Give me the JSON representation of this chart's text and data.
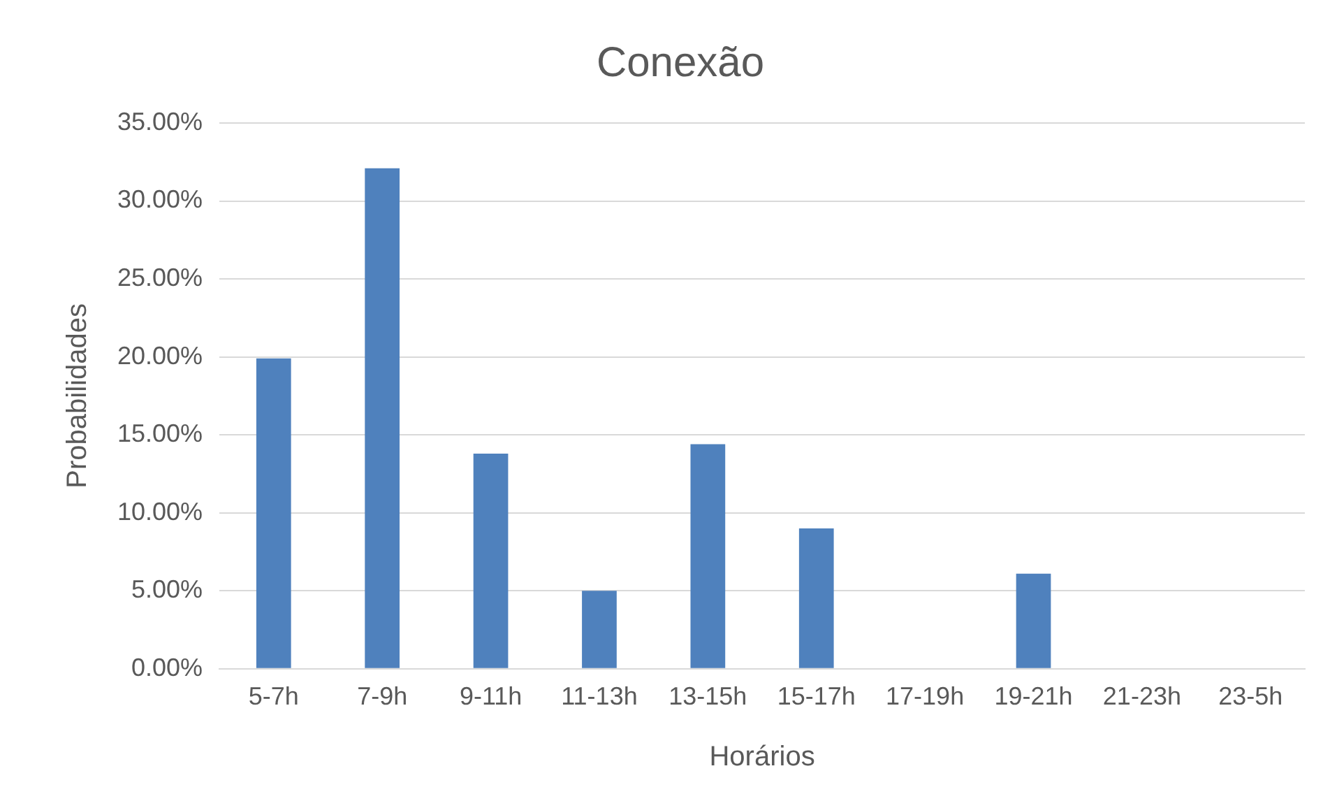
{
  "chart_data": {
    "type": "bar",
    "title": "Conexão",
    "xlabel": "Horários",
    "ylabel": "Probabilidades",
    "categories": [
      "5-7h",
      "7-9h",
      "9-11h",
      "11-13h",
      "13-15h",
      "15-17h",
      "17-19h",
      "19-21h",
      "21-23h",
      "23-5h"
    ],
    "values": [
      19.9,
      32.1,
      13.8,
      5.0,
      14.4,
      9.0,
      0,
      6.1,
      0,
      0
    ],
    "color": "#4f81bd",
    "ylim": [
      0,
      35
    ],
    "yticks": [
      {
        "value": 0,
        "label": "0.00%"
      },
      {
        "value": 5,
        "label": "5.00%"
      },
      {
        "value": 10,
        "label": "10.00%"
      },
      {
        "value": 15,
        "label": "15.00%"
      },
      {
        "value": 20,
        "label": "20.00%"
      },
      {
        "value": 25,
        "label": "25.00%"
      },
      {
        "value": 30,
        "label": "30.00%"
      },
      {
        "value": 35,
        "label": "35.00%"
      }
    ],
    "grid": "y"
  }
}
